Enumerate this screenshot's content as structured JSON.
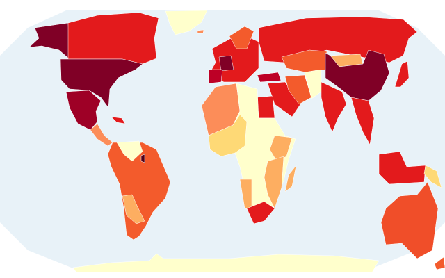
{
  "map": {
    "projection": "robinson",
    "type": "choropleth",
    "ocean_color": "#e8f2f8",
    "background_color": "#ffffff",
    "scale_colors": [
      "#ffffcc",
      "#fed976",
      "#fdae61",
      "#fc8d59",
      "#f35b2c",
      "#e31a1c",
      "#bd0026",
      "#800026"
    ],
    "fills": {
      "greenland": "#ffffcc",
      "alaska": "#800026",
      "canada": "#e31a1c",
      "usa": "#800026",
      "mexico": "#9e0026",
      "central-america": "#fc8d59",
      "caribbean": "#e31a1c",
      "south-america": "#f35b2c",
      "venezuela-guyana": "#ffffcc",
      "bolivia-paraguay": "#fdae61",
      "french-guiana": "#500018",
      "europe": "#e31a1c",
      "france": "#800026",
      "spain": "#bd0026",
      "scandinavia": "#f35b2c",
      "russia": "#e31a1c",
      "kazakhstan": "#f35b2c",
      "turkey": "#bd0026",
      "middle-east": "#e31a1c",
      "iran": "#f35b2c",
      "afghanistan-pakistan": "#ffffcc",
      "india": "#e31a1c",
      "china": "#800026",
      "mongolia": "#fdae61",
      "southeast-asia": "#e31a1c",
      "indonesia": "#e31a1c",
      "papua-new-guinea": "#fed976",
      "japan": "#e31a1c",
      "australia": "#f04e29",
      "new-zealand": "#f35b2c",
      "north-africa-west": "#fc8d59",
      "egypt": "#e31a1c",
      "africa": "#ffffcc",
      "west-africa": "#fed976",
      "east-africa": "#fdae61",
      "southern-africa-band": "#fdae61",
      "south-africa": "#e31a1c",
      "madagascar": "#fdae61",
      "antarctica": "#ffffcc",
      "iceland": "#fc8d59"
    }
  }
}
